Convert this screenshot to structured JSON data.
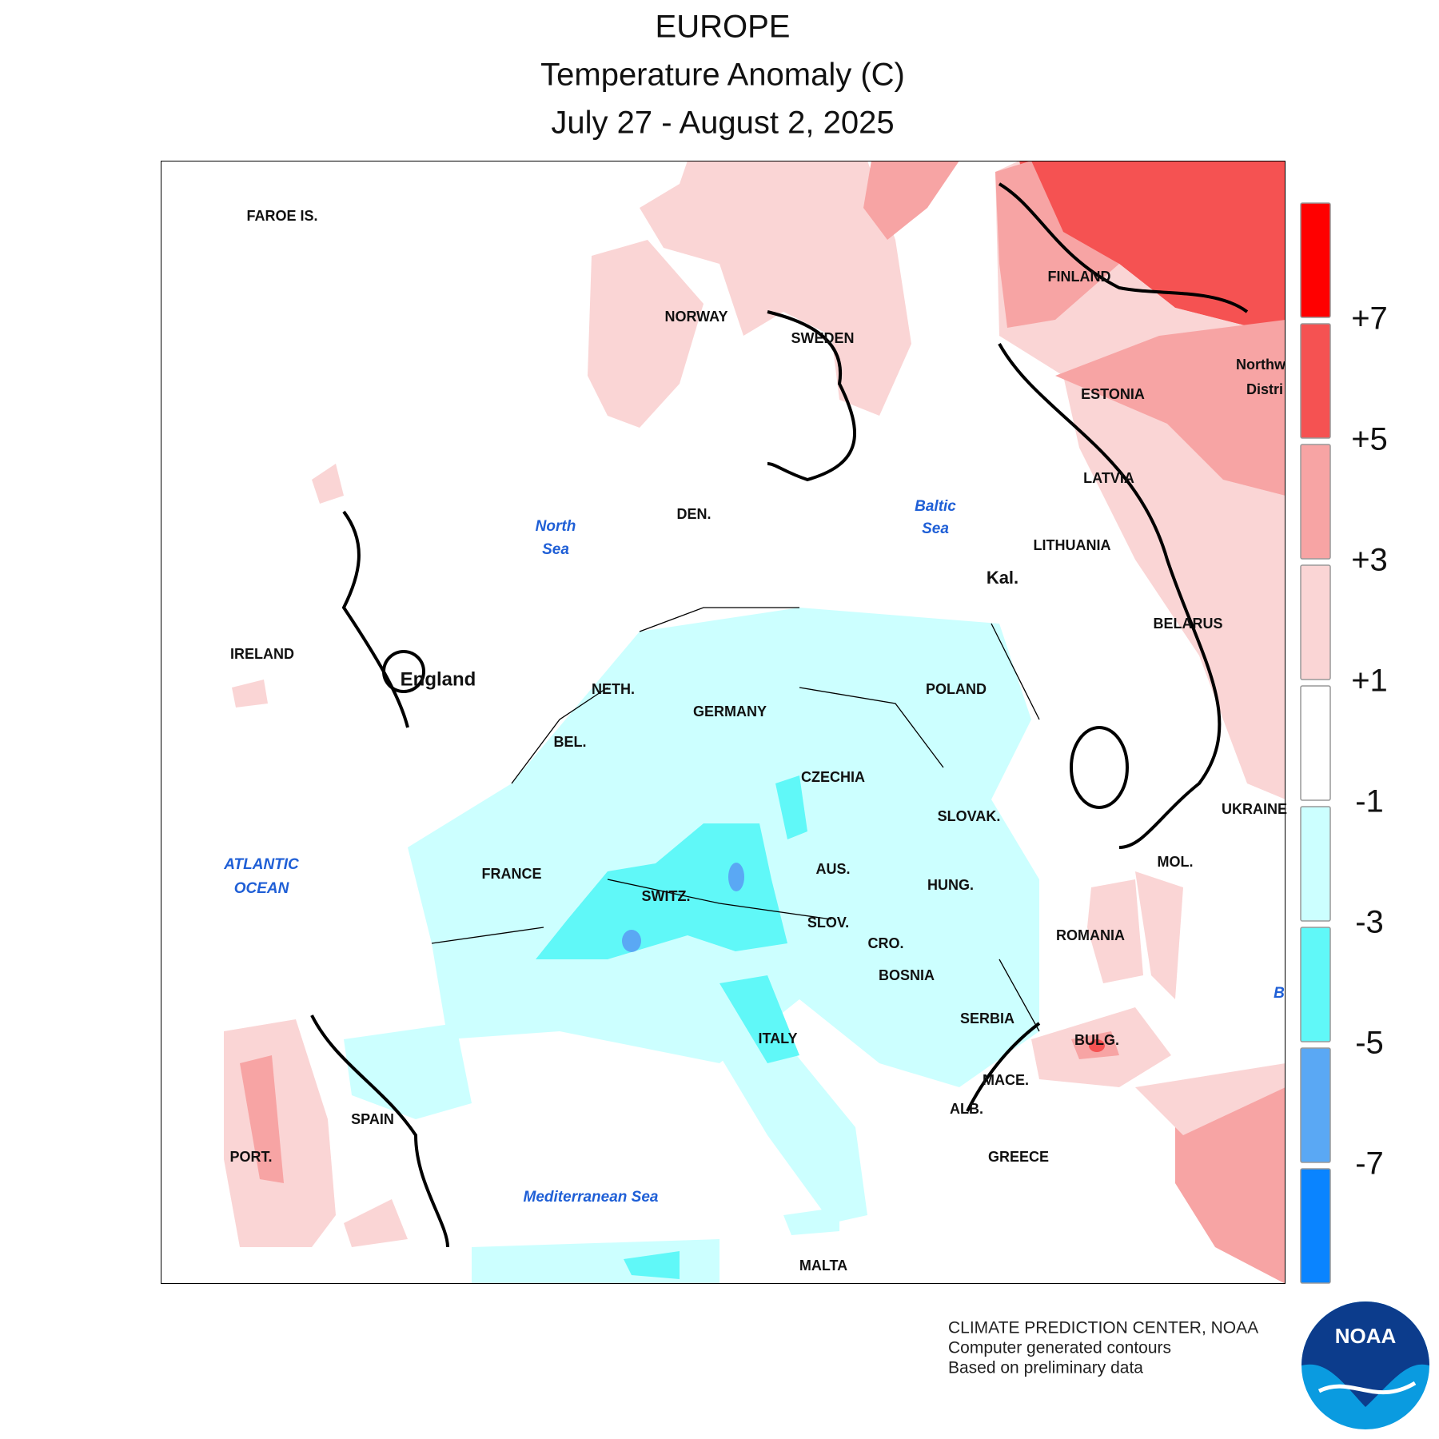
{
  "header": {
    "title": "EUROPE",
    "subtitle": "Temperature Anomaly (C)",
    "period": "July 27 - August 2, 2025"
  },
  "map": {
    "labels": [
      "FAROE IS.",
      "NORWAY",
      "SWEDEN",
      "FINLAND",
      "Northw",
      "Distri",
      "ESTONIA",
      "LATVIA",
      "LITHUANIA",
      "Kal.",
      "BELARUS",
      "UKRAINE",
      "MOL.",
      "DEN.",
      "POLAND",
      "GERMANY",
      "NETH.",
      "BEL.",
      "IRELAND",
      "England",
      "CZECHIA",
      "SLOVAK.",
      "AUS.",
      "HUNG.",
      "SWITZ.",
      "FRANCE",
      "SLOV.",
      "CRO.",
      "BOSNIA",
      "ROMANIA",
      "SERBIA",
      "BULG.",
      "MACE.",
      "ALB.",
      "GREECE",
      "ITALY",
      "SPAIN",
      "PORT.",
      "MALTA"
    ],
    "seas": [
      "North",
      "Sea",
      "Baltic",
      "Sea",
      "ATLANTIC",
      "OCEAN",
      "Mediterranean Sea",
      "B"
    ]
  },
  "legend": {
    "colors": [
      "#ff0000",
      "#f55252",
      "#f7a4a4",
      "#fad5d5",
      "#ffffff",
      "#ccffff",
      "#60f8f8",
      "#5aa8f4",
      "#0a84ff"
    ],
    "ticks": [
      "+7",
      "+5",
      "+3",
      "+1",
      "-1",
      "-3",
      "-5",
      "-7"
    ]
  },
  "footer": {
    "lines": [
      "CLIMATE PREDICTION CENTER, NOAA",
      "Computer generated contours",
      "Based on preliminary data"
    ],
    "logo": "NOAA"
  }
}
